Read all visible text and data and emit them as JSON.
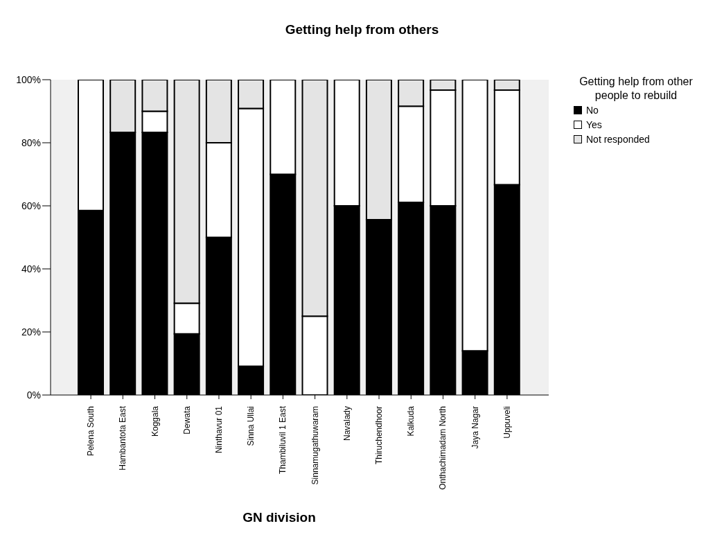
{
  "chart_data": {
    "type": "bar",
    "title": "Getting help from others",
    "xlabel": "GN division",
    "legend_title": "Getting help from other people to rebuild",
    "stacked": true,
    "legend": "top right",
    "grid": false,
    "categories": [
      "Pelena South",
      "Hambantota East",
      "Koggala",
      "Dewata",
      "Ninthavur 01",
      "Sinna Ullai",
      "Thambiluvil 1 East",
      "Sinnamugathuwaram",
      "Navalady",
      "Thiruchendhoor",
      "Kalkuda",
      "Onthachimadam North",
      "Jaya Nagar",
      "Uppuveli"
    ],
    "ylim": [
      0,
      100
    ],
    "yticks": [
      {
        "value": 0,
        "label": "0%"
      },
      {
        "value": 20,
        "label": "20%"
      },
      {
        "value": 40,
        "label": "40%"
      },
      {
        "value": 60,
        "label": "60%"
      },
      {
        "value": 80,
        "label": "80%"
      },
      {
        "value": 100,
        "label": "100%"
      }
    ],
    "series": [
      {
        "name": "No",
        "color": "#000000",
        "values": [
          58.5,
          83.3,
          83.3,
          19.4,
          50,
          9.1,
          70,
          0,
          60,
          55.6,
          61.1,
          60,
          14,
          66.7
        ]
      },
      {
        "name": "Yes",
        "color": "#ffffff",
        "values": [
          41.5,
          0,
          6.7,
          9.7,
          30,
          81.8,
          30,
          25,
          40,
          0,
          30.5,
          36.7,
          86,
          30
        ]
      },
      {
        "name": "Not responded",
        "color": "#e4e4e4",
        "values": [
          0,
          16.7,
          10,
          70.9,
          20,
          9.1,
          0,
          75,
          0,
          44.4,
          8.4,
          3.3,
          0,
          3.3
        ]
      }
    ]
  }
}
